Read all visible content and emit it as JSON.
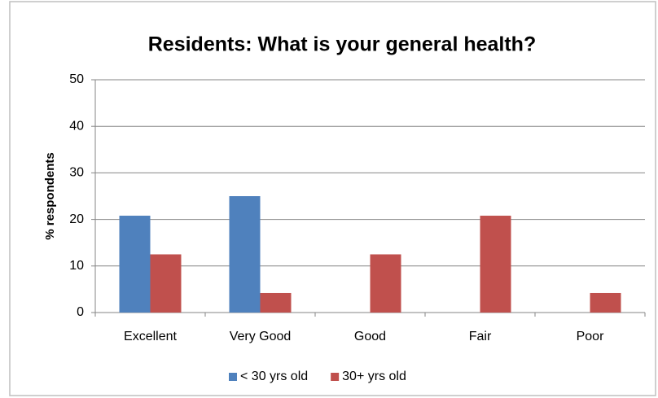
{
  "chart_data": {
    "type": "bar",
    "title": "Residents: What is your general health?",
    "y_label": "% respondents",
    "categories": [
      "Excellent",
      "Very Good",
      "Good",
      "Fair",
      "Poor"
    ],
    "series": [
      {
        "name": "< 30 yrs old",
        "color": "#4f81bd",
        "values": [
          20.8,
          25,
          0,
          0,
          0
        ]
      },
      {
        "name": "30+ yrs old",
        "color": "#c0504d",
        "values": [
          12.5,
          4.2,
          12.5,
          20.8,
          4.2
        ]
      }
    ],
    "ylim": [
      0,
      50
    ],
    "yticks": [
      0,
      10,
      20,
      30,
      40,
      50
    ],
    "grid": true,
    "legend": "bottom"
  }
}
